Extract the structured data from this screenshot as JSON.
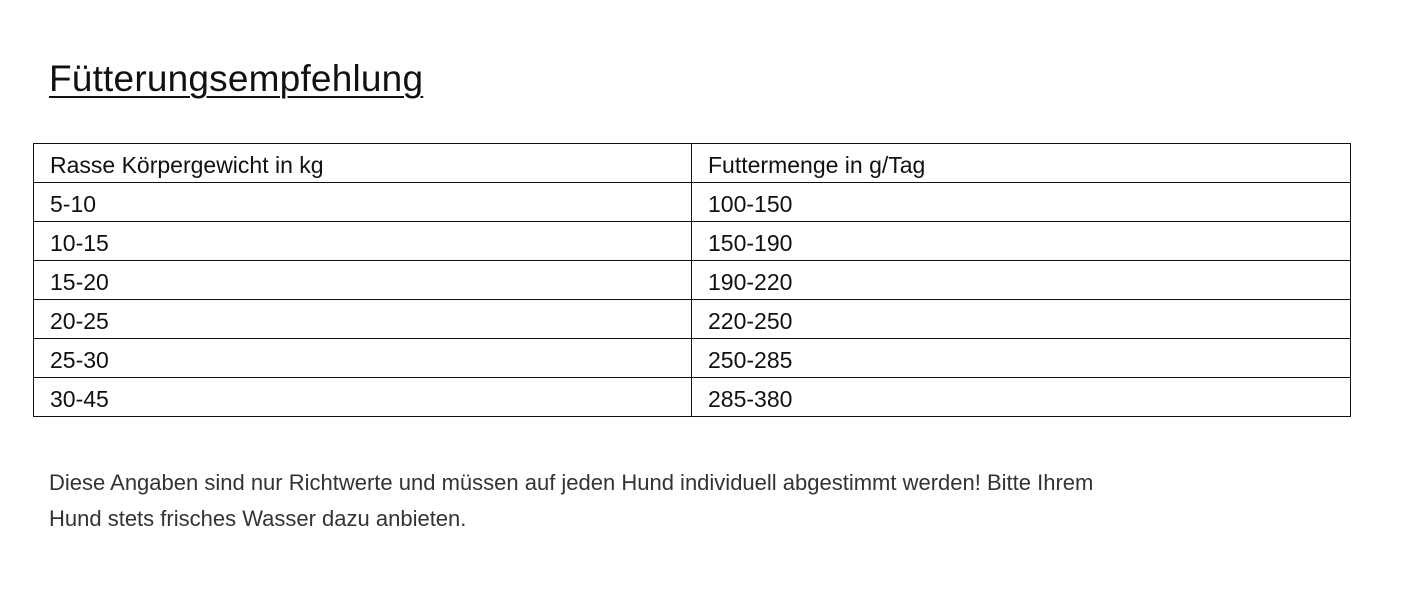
{
  "title": "Fütterungsempfehlung",
  "table": {
    "headers": [
      "Rasse Körpergewicht  in kg",
      "Futtermenge  in g/Tag"
    ],
    "rows": [
      [
        "5-10",
        "100-150"
      ],
      [
        "10-15",
        "150-190"
      ],
      [
        "15-20",
        "190-220"
      ],
      [
        "20-25",
        "220-250"
      ],
      [
        "25-30",
        "250-285"
      ],
      [
        "30-45",
        "285-380"
      ]
    ]
  },
  "note": {
    "line1": "Diese Angaben sind nur Richtwerte und müssen auf jeden Hund individuell abgestimmt werden! Bitte Ihrem",
    "line2": "Hund stets frisches Wasser dazu anbieten."
  }
}
